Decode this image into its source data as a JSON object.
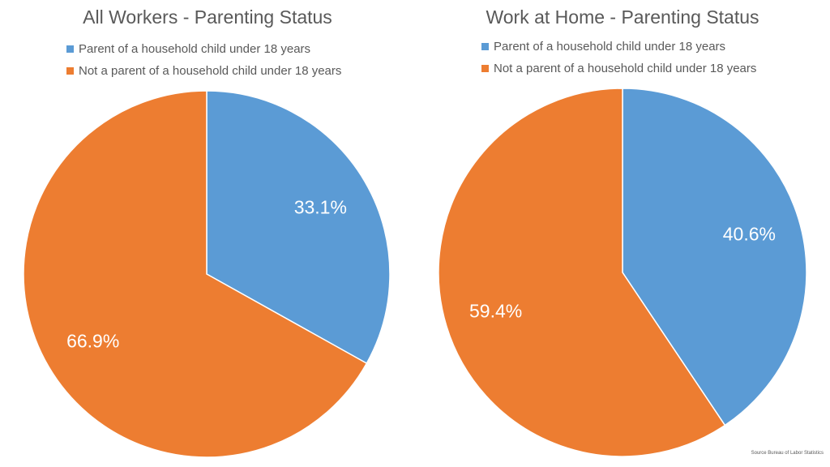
{
  "charts": [
    {
      "title": "All Workers - Parenting Status",
      "legend": [
        {
          "label": "Parent of a household child under 18 years",
          "color": "#5B9BD5"
        },
        {
          "label": "Not a parent of a household child under 18 years",
          "color": "#ED7D31"
        }
      ],
      "slices": [
        {
          "label": "33.1%",
          "value": 33.1,
          "color": "#5B9BD5"
        },
        {
          "label": "66.9%",
          "value": 66.9,
          "color": "#ED7D31"
        }
      ]
    },
    {
      "title": "Work at Home - Parenting Status",
      "legend": [
        {
          "label": "Parent of a household child under 18 years",
          "color": "#5B9BD5"
        },
        {
          "label": "Not a parent of a household child under 18 years",
          "color": "#ED7D31"
        }
      ],
      "slices": [
        {
          "label": "40.6%",
          "value": 40.6,
          "color": "#5B9BD5"
        },
        {
          "label": "59.4%",
          "value": 59.4,
          "color": "#ED7D31"
        }
      ]
    }
  ],
  "source": "Source Bureau  of Labor Statistics",
  "chart_data": [
    {
      "type": "pie",
      "title": "All Workers - Parenting Status",
      "categories": [
        "Parent of a household child under 18 years",
        "Not a parent of a household child under 18 years"
      ],
      "values": [
        33.1,
        66.9
      ],
      "colors": [
        "#5B9BD5",
        "#ED7D31"
      ],
      "legend_position": "top",
      "data_labels": [
        "33.1%",
        "66.9%"
      ]
    },
    {
      "type": "pie",
      "title": "Work at Home - Parenting Status",
      "categories": [
        "Parent of a household child under 18 years",
        "Not a parent of a household child under 18 years"
      ],
      "values": [
        40.6,
        59.4
      ],
      "colors": [
        "#5B9BD5",
        "#ED7D31"
      ],
      "legend_position": "top",
      "data_labels": [
        "40.6%",
        "59.4%"
      ]
    }
  ]
}
